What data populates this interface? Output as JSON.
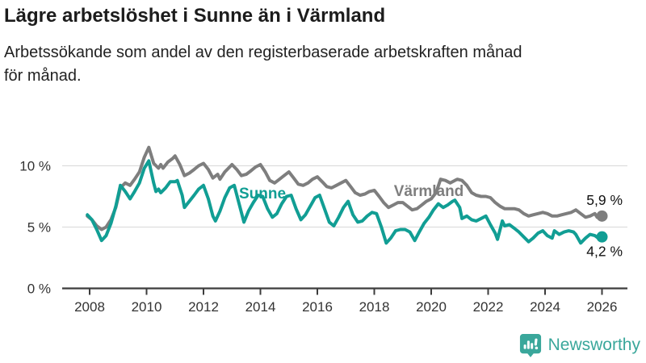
{
  "header": {
    "title": "Lägre arbetslöshet i Sunne än i Värmland",
    "subtitle_line1": "Arbetssökande som andel av den registerbaserade arbetskraften månad",
    "subtitle_line2": "för månad."
  },
  "footer": {
    "brand": "Newsworthy"
  },
  "colors": {
    "sunne_teal": "#119e94",
    "varmland_gray": "#7e7e7e",
    "grid": "#dddddd",
    "axis": "#3c3c3c",
    "axis_text": "#333333",
    "value_label_text": "#111111",
    "logo_teal": "#3aa79b"
  },
  "chart_data": {
    "type": "line",
    "title": "Lägre arbetslöshet i Sunne än i Värmland",
    "subtitle": "Arbetssökande som andel av den registerbaserade arbetskraften månad för månad.",
    "xlabel": "",
    "ylabel": "",
    "grid": "horizontal",
    "legend_position": "inline-labels",
    "x_axis": {
      "range": [
        2007.9,
        2026.1
      ],
      "ticks": [
        {
          "value": 2008,
          "label": "2008"
        },
        {
          "value": 2010,
          "label": "2010"
        },
        {
          "value": 2012,
          "label": "2012"
        },
        {
          "value": 2014,
          "label": "2014"
        },
        {
          "value": 2016,
          "label": "2016"
        },
        {
          "value": 2018,
          "label": "2018"
        },
        {
          "value": 2020,
          "label": "2020"
        },
        {
          "value": 2022,
          "label": "2022"
        },
        {
          "value": 2024,
          "label": "2024"
        },
        {
          "value": 2026,
          "label": "2026"
        }
      ]
    },
    "y_axis": {
      "range": [
        0,
        12.2
      ],
      "unit": "%",
      "ticks": [
        {
          "value": 0,
          "label": "0 %"
        },
        {
          "value": 5,
          "label": "5 %"
        },
        {
          "value": 10,
          "label": "10 %"
        }
      ]
    },
    "series": [
      {
        "name": "Värmland",
        "color": "#7e7e7e",
        "end_label": "5,9 %",
        "end_value": 5.9,
        "points": [
          [
            2007.92,
            5.9
          ],
          [
            2008.08,
            5.6
          ],
          [
            2008.25,
            5.1
          ],
          [
            2008.42,
            4.8
          ],
          [
            2008.58,
            5.0
          ],
          [
            2008.75,
            5.6
          ],
          [
            2008.92,
            6.6
          ],
          [
            2009.08,
            8.2
          ],
          [
            2009.25,
            8.6
          ],
          [
            2009.42,
            8.4
          ],
          [
            2009.58,
            8.9
          ],
          [
            2009.75,
            9.5
          ],
          [
            2009.92,
            10.7
          ],
          [
            2010.08,
            11.5
          ],
          [
            2010.25,
            10.2
          ],
          [
            2010.42,
            9.8
          ],
          [
            2010.5,
            10.1
          ],
          [
            2010.58,
            9.8
          ],
          [
            2010.75,
            10.3
          ],
          [
            2010.92,
            10.6
          ],
          [
            2011.0,
            10.8
          ],
          [
            2011.17,
            10.1
          ],
          [
            2011.33,
            9.2
          ],
          [
            2011.5,
            9.4
          ],
          [
            2011.67,
            9.7
          ],
          [
            2011.83,
            10.0
          ],
          [
            2012.0,
            10.2
          ],
          [
            2012.17,
            9.7
          ],
          [
            2012.33,
            9.0
          ],
          [
            2012.5,
            9.3
          ],
          [
            2012.58,
            8.9
          ],
          [
            2012.75,
            9.5
          ],
          [
            2012.92,
            9.9
          ],
          [
            2013.0,
            10.1
          ],
          [
            2013.17,
            9.7
          ],
          [
            2013.33,
            9.2
          ],
          [
            2013.5,
            9.3
          ],
          [
            2013.67,
            9.6
          ],
          [
            2013.83,
            9.9
          ],
          [
            2014.0,
            10.1
          ],
          [
            2014.17,
            9.5
          ],
          [
            2014.33,
            8.8
          ],
          [
            2014.5,
            8.6
          ],
          [
            2014.67,
            8.9
          ],
          [
            2014.83,
            9.2
          ],
          [
            2015.0,
            9.5
          ],
          [
            2015.17,
            9.0
          ],
          [
            2015.33,
            8.5
          ],
          [
            2015.5,
            8.4
          ],
          [
            2015.67,
            8.6
          ],
          [
            2015.83,
            8.9
          ],
          [
            2016.0,
            9.1
          ],
          [
            2016.17,
            8.7
          ],
          [
            2016.33,
            8.3
          ],
          [
            2016.5,
            8.2
          ],
          [
            2016.67,
            8.4
          ],
          [
            2016.83,
            8.6
          ],
          [
            2017.0,
            8.8
          ],
          [
            2017.17,
            8.3
          ],
          [
            2017.33,
            7.8
          ],
          [
            2017.5,
            7.6
          ],
          [
            2017.67,
            7.7
          ],
          [
            2017.83,
            7.9
          ],
          [
            2018.0,
            8.0
          ],
          [
            2018.17,
            7.5
          ],
          [
            2018.33,
            7.0
          ],
          [
            2018.5,
            6.6
          ],
          [
            2018.67,
            6.8
          ],
          [
            2018.83,
            7.0
          ],
          [
            2019.0,
            7.0
          ],
          [
            2019.17,
            6.7
          ],
          [
            2019.33,
            6.4
          ],
          [
            2019.5,
            6.5
          ],
          [
            2019.67,
            6.8
          ],
          [
            2019.83,
            7.1
          ],
          [
            2020.0,
            7.3
          ],
          [
            2020.17,
            7.8
          ],
          [
            2020.33,
            8.9
          ],
          [
            2020.5,
            8.8
          ],
          [
            2020.67,
            8.6
          ],
          [
            2020.83,
            8.8
          ],
          [
            2020.92,
            8.9
          ],
          [
            2021.08,
            8.8
          ],
          [
            2021.25,
            8.4
          ],
          [
            2021.42,
            7.8
          ],
          [
            2021.58,
            7.6
          ],
          [
            2021.75,
            7.5
          ],
          [
            2021.92,
            7.5
          ],
          [
            2022.08,
            7.4
          ],
          [
            2022.25,
            7.0
          ],
          [
            2022.42,
            6.7
          ],
          [
            2022.58,
            6.5
          ],
          [
            2022.75,
            6.5
          ],
          [
            2022.92,
            6.5
          ],
          [
            2023.08,
            6.4
          ],
          [
            2023.25,
            6.1
          ],
          [
            2023.42,
            5.9
          ],
          [
            2023.58,
            6.0
          ],
          [
            2023.75,
            6.1
          ],
          [
            2023.92,
            6.2
          ],
          [
            2024.08,
            6.1
          ],
          [
            2024.25,
            5.9
          ],
          [
            2024.42,
            5.9
          ],
          [
            2024.58,
            6.0
          ],
          [
            2024.75,
            6.1
          ],
          [
            2024.92,
            6.2
          ],
          [
            2025.08,
            6.4
          ],
          [
            2025.25,
            6.1
          ],
          [
            2025.42,
            5.8
          ],
          [
            2025.58,
            5.9
          ],
          [
            2025.75,
            6.1
          ],
          [
            2025.83,
            5.8
          ],
          [
            2026.0,
            5.9
          ]
        ]
      },
      {
        "name": "Sunne",
        "color": "#119e94",
        "end_label": "4,2 %",
        "end_value": 4.2,
        "points": [
          [
            2007.92,
            6.0
          ],
          [
            2008.08,
            5.6
          ],
          [
            2008.25,
            4.8
          ],
          [
            2008.42,
            3.9
          ],
          [
            2008.58,
            4.3
          ],
          [
            2008.75,
            5.3
          ],
          [
            2008.92,
            6.7
          ],
          [
            2009.08,
            8.4
          ],
          [
            2009.25,
            7.9
          ],
          [
            2009.42,
            7.3
          ],
          [
            2009.58,
            7.9
          ],
          [
            2009.75,
            8.6
          ],
          [
            2009.92,
            9.8
          ],
          [
            2010.08,
            10.4
          ],
          [
            2010.25,
            8.6
          ],
          [
            2010.33,
            7.9
          ],
          [
            2010.42,
            8.1
          ],
          [
            2010.5,
            7.8
          ],
          [
            2010.67,
            8.2
          ],
          [
            2010.83,
            8.7
          ],
          [
            2011.0,
            8.7
          ],
          [
            2011.08,
            8.8
          ],
          [
            2011.25,
            7.6
          ],
          [
            2011.33,
            6.6
          ],
          [
            2011.5,
            7.1
          ],
          [
            2011.67,
            7.6
          ],
          [
            2011.83,
            8.1
          ],
          [
            2012.0,
            8.4
          ],
          [
            2012.17,
            7.3
          ],
          [
            2012.33,
            5.9
          ],
          [
            2012.42,
            5.5
          ],
          [
            2012.58,
            6.3
          ],
          [
            2012.75,
            7.4
          ],
          [
            2012.92,
            8.2
          ],
          [
            2013.08,
            8.4
          ],
          [
            2013.25,
            6.9
          ],
          [
            2013.42,
            5.4
          ],
          [
            2013.58,
            6.3
          ],
          [
            2013.75,
            7.0
          ],
          [
            2013.92,
            7.6
          ],
          [
            2014.08,
            7.5
          ],
          [
            2014.25,
            6.5
          ],
          [
            2014.42,
            5.8
          ],
          [
            2014.58,
            6.1
          ],
          [
            2014.75,
            6.9
          ],
          [
            2014.92,
            7.5
          ],
          [
            2015.08,
            7.6
          ],
          [
            2015.25,
            6.5
          ],
          [
            2015.42,
            5.6
          ],
          [
            2015.58,
            6.0
          ],
          [
            2015.75,
            6.7
          ],
          [
            2015.92,
            7.4
          ],
          [
            2016.08,
            7.6
          ],
          [
            2016.25,
            6.5
          ],
          [
            2016.42,
            5.4
          ],
          [
            2016.58,
            5.1
          ],
          [
            2016.75,
            5.8
          ],
          [
            2016.92,
            6.6
          ],
          [
            2017.08,
            7.1
          ],
          [
            2017.25,
            6.0
          ],
          [
            2017.42,
            5.4
          ],
          [
            2017.58,
            5.5
          ],
          [
            2017.75,
            5.9
          ],
          [
            2017.92,
            6.2
          ],
          [
            2018.08,
            6.1
          ],
          [
            2018.25,
            5.0
          ],
          [
            2018.42,
            3.7
          ],
          [
            2018.58,
            4.1
          ],
          [
            2018.75,
            4.7
          ],
          [
            2018.92,
            4.8
          ],
          [
            2019.08,
            4.8
          ],
          [
            2019.25,
            4.6
          ],
          [
            2019.42,
            3.9
          ],
          [
            2019.58,
            4.6
          ],
          [
            2019.75,
            5.3
          ],
          [
            2019.92,
            5.8
          ],
          [
            2020.08,
            6.4
          ],
          [
            2020.25,
            6.9
          ],
          [
            2020.42,
            6.6
          ],
          [
            2020.58,
            6.8
          ],
          [
            2020.75,
            7.1
          ],
          [
            2020.83,
            7.2
          ],
          [
            2021.0,
            6.6
          ],
          [
            2021.08,
            5.7
          ],
          [
            2021.25,
            5.9
          ],
          [
            2021.42,
            5.6
          ],
          [
            2021.58,
            5.5
          ],
          [
            2021.75,
            5.7
          ],
          [
            2021.92,
            5.9
          ],
          [
            2022.08,
            5.2
          ],
          [
            2022.25,
            4.5
          ],
          [
            2022.33,
            4.0
          ],
          [
            2022.5,
            5.5
          ],
          [
            2022.58,
            5.1
          ],
          [
            2022.75,
            5.2
          ],
          [
            2022.92,
            4.9
          ],
          [
            2023.08,
            4.6
          ],
          [
            2023.25,
            4.2
          ],
          [
            2023.42,
            3.8
          ],
          [
            2023.58,
            4.1
          ],
          [
            2023.75,
            4.5
          ],
          [
            2023.92,
            4.7
          ],
          [
            2024.08,
            4.3
          ],
          [
            2024.25,
            4.1
          ],
          [
            2024.33,
            4.7
          ],
          [
            2024.5,
            4.4
          ],
          [
            2024.67,
            4.6
          ],
          [
            2024.83,
            4.7
          ],
          [
            2025.0,
            4.6
          ],
          [
            2025.08,
            4.4
          ],
          [
            2025.25,
            3.7
          ],
          [
            2025.42,
            4.1
          ],
          [
            2025.58,
            4.4
          ],
          [
            2025.75,
            4.3
          ],
          [
            2025.92,
            4.0
          ],
          [
            2026.0,
            4.2
          ]
        ]
      }
    ]
  }
}
